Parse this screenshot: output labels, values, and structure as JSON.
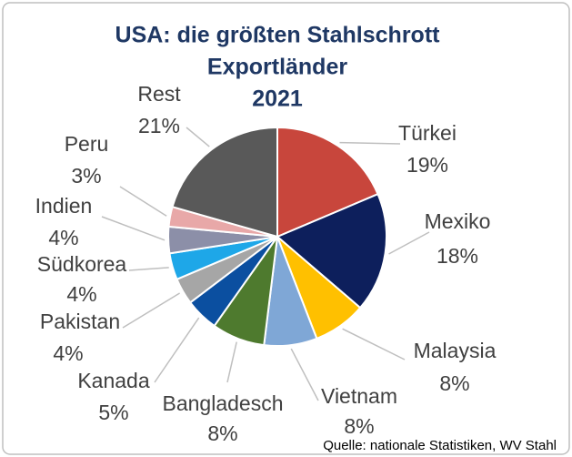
{
  "chart_data": {
    "type": "pie",
    "title": [
      "USA: die größten Stahlschrott",
      "Exportländer",
      "2021"
    ],
    "categories": [
      "Türkei",
      "Mexiko",
      "Malaysia",
      "Vietnam",
      "Bangladesch",
      "Kanada",
      "Pakistan",
      "Südkorea",
      "Indien",
      "Peru",
      "Rest"
    ],
    "values": [
      19,
      18,
      8,
      8,
      8,
      5,
      4,
      4,
      4,
      3,
      21
    ],
    "value_labels": [
      "19%",
      "18%",
      "8%",
      "8%",
      "8%",
      "5%",
      "4%",
      "4%",
      "4%",
      "3%",
      "21%"
    ],
    "colors": [
      "#c8463c",
      "#0d1f5c",
      "#ffc000",
      "#7fa7d6",
      "#4e7a2e",
      "#0b4fa0",
      "#a6a6a6",
      "#1ea7e8",
      "#8c8fa8",
      "#e8a8a8",
      "#595959"
    ],
    "source": "Quelle: nationale Statistiken, WV Stahl"
  }
}
